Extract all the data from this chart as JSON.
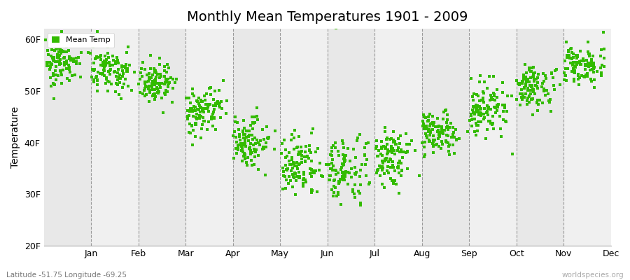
{
  "title": "Monthly Mean Temperatures 1901 - 2009",
  "ylabel": "Temperature",
  "bottom_left_label": "Latitude -51.75 Longitude -69.25",
  "bottom_right_label": "worldspecies.org",
  "legend_label": "Mean Temp",
  "dot_color": "#33bb00",
  "background_color": "#ffffff",
  "plot_bg_alternating": [
    "#e8e8e8",
    "#f0f0f0"
  ],
  "yticks": [
    20,
    30,
    40,
    50,
    60
  ],
  "ytick_labels": [
    "20F",
    "30F",
    "40F",
    "50F",
    "60F"
  ],
  "months": [
    "Jan",
    "Feb",
    "Mar",
    "Apr",
    "May",
    "Jun",
    "Jul",
    "Aug",
    "Sep",
    "Oct",
    "Nov",
    "Dec"
  ],
  "monthly_mean_F": [
    55.8,
    54.0,
    51.5,
    46.5,
    40.0,
    35.5,
    34.5,
    37.5,
    41.5,
    46.5,
    51.0,
    55.0
  ],
  "monthly_std_F": [
    2.0,
    2.5,
    2.0,
    2.5,
    2.5,
    2.5,
    2.8,
    2.5,
    2.0,
    2.5,
    2.0,
    1.8
  ],
  "monthly_extra_spread": [
    1.5,
    2.0,
    1.5,
    1.5,
    2.0,
    2.5,
    3.5,
    2.0,
    1.5,
    1.5,
    1.5,
    1.0
  ],
  "n_years": 109,
  "ylim": [
    20,
    62
  ],
  "seed": 42
}
